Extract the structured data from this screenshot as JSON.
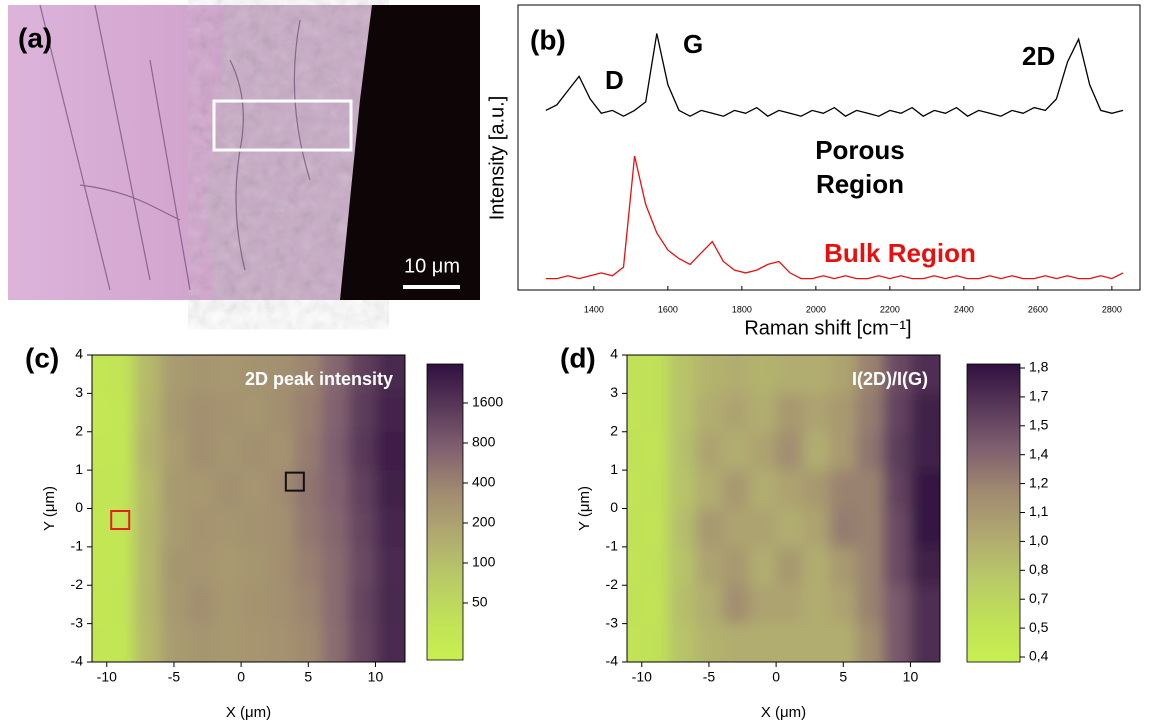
{
  "panel_a": {
    "label": "(a)",
    "scale_bar": "10 μm"
  },
  "chart_data": [
    {
      "type": "line",
      "label": "(b)",
      "xlabel": "Raman shift [cm⁻¹]",
      "ylabel": "Intensity [a.u.]",
      "peak_labels": [
        "D",
        "G",
        "2D"
      ],
      "x": [
        1270,
        1300,
        1330,
        1360,
        1390,
        1420,
        1450,
        1480,
        1510,
        1540,
        1570,
        1600,
        1630,
        1660,
        1690,
        1720,
        1750,
        1780,
        1810,
        1840,
        1870,
        1900,
        1930,
        1960,
        1990,
        2020,
        2050,
        2080,
        2110,
        2140,
        2170,
        2200,
        2230,
        2260,
        2290,
        2320,
        2350,
        2380,
        2410,
        2440,
        2470,
        2500,
        2530,
        2560,
        2590,
        2620,
        2650,
        2680,
        2710,
        2740,
        2770,
        2800,
        2830
      ],
      "series": [
        {
          "name": "Porous Region",
          "color": "#000000",
          "values": [
            63,
            65,
            70,
            75,
            67,
            62,
            63,
            61,
            63,
            66,
            90,
            72,
            63,
            61,
            63,
            62,
            61,
            63,
            62,
            64,
            61,
            63,
            62,
            61,
            63,
            62,
            64,
            61,
            63,
            62,
            61,
            63,
            62,
            64,
            61,
            63,
            62,
            64,
            61,
            63,
            62,
            61,
            63,
            62,
            64,
            63,
            67,
            80,
            88,
            72,
            63,
            62,
            63
          ]
        },
        {
          "name": "Bulk Region",
          "color": "#e8100e",
          "values": [
            4,
            4,
            5,
            4,
            5,
            6,
            5,
            8,
            47,
            30,
            20,
            14,
            11,
            9,
            13,
            17,
            10,
            7,
            6,
            7,
            9,
            10,
            6,
            4,
            4,
            5,
            4,
            5,
            4,
            4,
            5,
            4,
            5,
            4,
            4,
            5,
            4,
            5,
            4,
            4,
            5,
            4,
            5,
            4,
            4,
            5,
            4,
            5,
            4,
            4,
            5,
            4,
            6
          ]
        }
      ],
      "xlim": [
        1195,
        2876
      ],
      "xticks": [
        1400,
        1600,
        1800,
        2000,
        2200,
        2400,
        2600,
        2800
      ],
      "ylim": [
        0,
        100
      ]
    },
    {
      "type": "heatmap",
      "label": "(c)",
      "title": "2D peak intensity",
      "xlabel": "X (μm)",
      "ylabel": "Y (μm)",
      "x": [
        -11,
        -9,
        -7,
        -5,
        -3,
        -1,
        1,
        3,
        5,
        7,
        9,
        11
      ],
      "y": [
        3.5,
        2.5,
        1.5,
        0.5,
        -0.5,
        -1.5,
        -2.5,
        -3.5
      ],
      "z": [
        [
          30,
          32,
          110,
          230,
          260,
          250,
          280,
          300,
          380,
          650,
          1300,
          2000
        ],
        [
          28,
          30,
          120,
          250,
          300,
          280,
          260,
          320,
          420,
          700,
          1400,
          2200
        ],
        [
          30,
          30,
          130,
          220,
          320,
          260,
          300,
          280,
          450,
          750,
          1500,
          2400
        ],
        [
          32,
          31,
          110,
          240,
          250,
          300,
          270,
          330,
          500,
          700,
          1300,
          2300
        ],
        [
          30,
          30,
          120,
          230,
          280,
          260,
          290,
          300,
          480,
          650,
          1200,
          2100
        ],
        [
          29,
          30,
          115,
          260,
          270,
          240,
          260,
          310,
          420,
          600,
          1100,
          1900
        ],
        [
          30,
          31,
          120,
          240,
          320,
          250,
          280,
          300,
          380,
          600,
          1200,
          2000
        ],
        [
          31,
          30,
          110,
          230,
          260,
          250,
          270,
          290,
          350,
          580,
          1150,
          1900
        ]
      ],
      "xlim": [
        -11.1,
        12.2
      ],
      "ylim": [
        -4,
        4
      ],
      "xticks": [
        -10,
        -5,
        0,
        5,
        10
      ],
      "yticks": [
        -4,
        -3,
        -2,
        -1,
        0,
        1,
        2,
        3,
        4
      ],
      "colorbar_ticks": [
        50,
        100,
        200,
        400,
        800,
        1600
      ],
      "zscale": "log",
      "colormap": [
        "#c8f050",
        "#c0e058",
        "#b8c868",
        "#b0a870",
        "#a08a70",
        "#806070",
        "#583858",
        "#301040"
      ],
      "markers": [
        {
          "x": -9,
          "y": -0.3,
          "color": "#e02020"
        },
        {
          "x": 4,
          "y": 0.7,
          "color": "#111111"
        }
      ]
    },
    {
      "type": "heatmap",
      "label": "(d)",
      "title": "I(2D)/I(G)",
      "xlabel": "X (μm)",
      "ylabel": "Y (μm)",
      "x": [
        -11,
        -9,
        -7,
        -5,
        -3,
        -1,
        1,
        3,
        5,
        7,
        9,
        11
      ],
      "y": [
        3.5,
        2.5,
        1.5,
        0.5,
        -0.5,
        -1.5,
        -2.5,
        -3.5
      ],
      "z": [
        [
          0.55,
          0.55,
          0.8,
          0.95,
          1.0,
          0.95,
          1.0,
          1.0,
          1.05,
          1.2,
          1.5,
          1.7
        ],
        [
          0.5,
          0.55,
          0.8,
          1.0,
          1.05,
          1.0,
          1.1,
          1.05,
          1.1,
          1.25,
          1.55,
          1.75
        ],
        [
          0.55,
          0.5,
          0.82,
          1.05,
          1.0,
          1.05,
          1.15,
          1.0,
          1.1,
          1.3,
          1.6,
          1.75
        ],
        [
          0.5,
          0.55,
          0.8,
          1.0,
          1.1,
          1.0,
          1.05,
          1.1,
          1.2,
          1.2,
          1.55,
          1.8
        ],
        [
          0.55,
          0.5,
          0.85,
          1.1,
          1.05,
          1.05,
          1.0,
          1.05,
          1.25,
          1.2,
          1.5,
          1.8
        ],
        [
          0.5,
          0.55,
          0.8,
          1.05,
          1.1,
          1.0,
          1.1,
          1.0,
          1.1,
          1.2,
          1.5,
          1.75
        ],
        [
          0.55,
          0.5,
          0.85,
          1.0,
          1.15,
          1.05,
          1.05,
          1.0,
          1.05,
          1.2,
          1.45,
          1.7
        ],
        [
          0.5,
          0.55,
          0.8,
          0.95,
          1.0,
          1.0,
          1.0,
          1.0,
          1.0,
          1.15,
          1.45,
          1.7
        ]
      ],
      "xlim": [
        -11.1,
        12.2
      ],
      "ylim": [
        -4,
        4
      ],
      "xticks": [
        -10,
        -5,
        0,
        5,
        10
      ],
      "yticks": [
        -4,
        -3,
        -2,
        -1,
        0,
        1,
        2,
        3,
        4
      ],
      "colorbar_ticks": [
        {
          "value": 0.4,
          "label": "0,4"
        },
        {
          "value": 0.5,
          "label": "0,5"
        },
        {
          "value": 0.7,
          "label": "0,7"
        },
        {
          "value": 0.8,
          "label": "0,8"
        },
        {
          "value": 1.0,
          "label": "1,0"
        },
        {
          "value": 1.1,
          "label": "1,1"
        },
        {
          "value": 1.2,
          "label": "1,2"
        },
        {
          "value": 1.4,
          "label": "1,4"
        },
        {
          "value": 1.5,
          "label": "1,5"
        },
        {
          "value": 1.7,
          "label": "1,7"
        },
        {
          "value": 1.8,
          "label": "1,8"
        }
      ],
      "zscale": "linear",
      "colormap": [
        "#c8f050",
        "#c0e058",
        "#b8c868",
        "#b0a870",
        "#a08a70",
        "#806070",
        "#583858",
        "#301040"
      ],
      "markers": []
    }
  ]
}
